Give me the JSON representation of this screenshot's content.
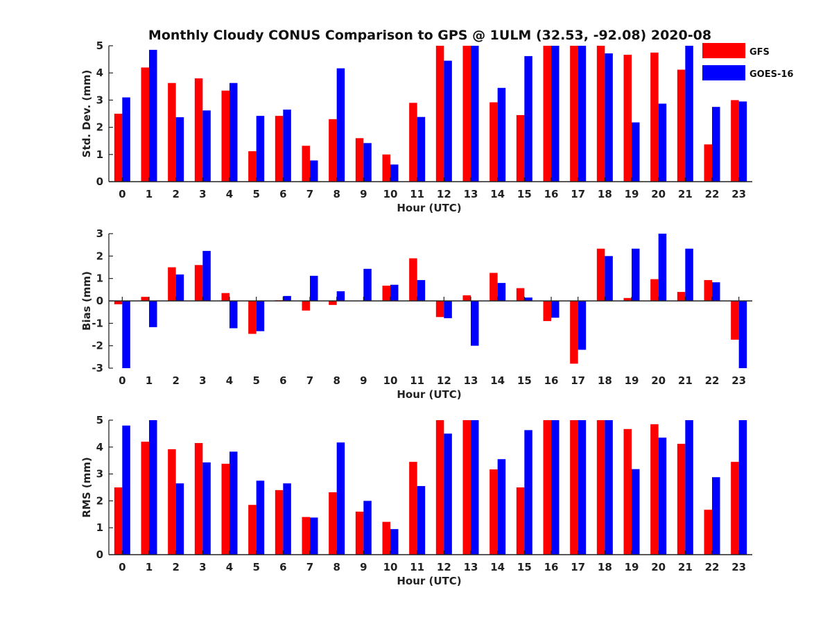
{
  "figure_title": "Monthly Cloudy CONUS Comparison to GPS @ 1ULM (32.53, -92.08) 2020-08",
  "legend": [
    {
      "name": "GFS",
      "color": "#ff0000"
    },
    {
      "name": "GOES-16",
      "color": "#0000ff"
    }
  ],
  "chart_data": [
    {
      "type": "bar",
      "title": "",
      "xlabel": "Hour (UTC)",
      "ylabel": "Std. Dev. (mm)",
      "ylim": [
        0,
        5
      ],
      "yticks": [
        0,
        1,
        2,
        3,
        4,
        5
      ],
      "categories": [
        "0",
        "1",
        "2",
        "3",
        "4",
        "5",
        "6",
        "7",
        "8",
        "9",
        "10",
        "11",
        "12",
        "13",
        "14",
        "15",
        "16",
        "17",
        "18",
        "19",
        "20",
        "21",
        "22",
        "23"
      ],
      "series": [
        {
          "name": "GFS",
          "color": "#ff0000",
          "values": [
            2.5,
            4.2,
            3.63,
            3.8,
            3.35,
            1.12,
            2.42,
            1.32,
            2.3,
            1.6,
            1.0,
            2.9,
            5.0,
            5.0,
            2.92,
            2.45,
            5.0,
            5.0,
            5.0,
            4.67,
            4.75,
            4.12,
            1.37,
            3.0
          ]
        },
        {
          "name": "GOES-16",
          "color": "#0000ff",
          "values": [
            3.1,
            4.85,
            2.37,
            2.62,
            3.63,
            2.42,
            2.65,
            0.78,
            4.17,
            1.42,
            0.63,
            2.38,
            4.45,
            5.0,
            3.45,
            4.62,
            5.0,
            5.0,
            4.72,
            2.18,
            2.87,
            5.0,
            2.75,
            2.95
          ]
        }
      ]
    },
    {
      "type": "bar",
      "title": "",
      "xlabel": "Hour (UTC)",
      "ylabel": "Bias (mm)",
      "ylim": [
        -3,
        3
      ],
      "yticks": [
        -3,
        -2,
        -1,
        0,
        1,
        2,
        3
      ],
      "categories": [
        "0",
        "1",
        "2",
        "3",
        "4",
        "5",
        "6",
        "7",
        "8",
        "9",
        "10",
        "11",
        "12",
        "13",
        "14",
        "15",
        "16",
        "17",
        "18",
        "19",
        "20",
        "21",
        "22",
        "23"
      ],
      "series": [
        {
          "name": "GFS",
          "color": "#ff0000",
          "values": [
            -0.15,
            0.18,
            1.5,
            1.6,
            0.35,
            -1.47,
            0.03,
            -0.43,
            -0.18,
            0.0,
            0.68,
            1.9,
            -0.72,
            0.25,
            1.25,
            0.57,
            -0.9,
            -2.8,
            2.33,
            0.13,
            0.97,
            0.4,
            0.93,
            -1.73
          ]
        },
        {
          "name": "GOES-16",
          "color": "#0000ff",
          "values": [
            -3.0,
            -1.17,
            1.18,
            2.23,
            -1.22,
            -1.35,
            0.22,
            1.12,
            0.43,
            1.43,
            0.72,
            0.93,
            -0.77,
            -2.0,
            0.8,
            0.15,
            -0.75,
            -2.18,
            2.0,
            2.33,
            3.0,
            2.33,
            0.83,
            -3.0
          ]
        }
      ]
    },
    {
      "type": "bar",
      "title": "",
      "xlabel": "Hour (UTC)",
      "ylabel": "RMS (mm)",
      "ylim": [
        0,
        5
      ],
      "yticks": [
        0,
        1,
        2,
        3,
        4,
        5
      ],
      "categories": [
        "0",
        "1",
        "2",
        "3",
        "4",
        "5",
        "6",
        "7",
        "8",
        "9",
        "10",
        "11",
        "12",
        "13",
        "14",
        "15",
        "16",
        "17",
        "18",
        "19",
        "20",
        "21",
        "22",
        "23"
      ],
      "series": [
        {
          "name": "GFS",
          "color": "#ff0000",
          "values": [
            2.5,
            4.2,
            3.92,
            4.15,
            3.38,
            1.85,
            2.4,
            1.4,
            2.32,
            1.6,
            1.22,
            3.45,
            5.0,
            5.0,
            3.17,
            2.5,
            5.0,
            5.0,
            5.0,
            4.67,
            4.85,
            4.12,
            1.67,
            3.45
          ]
        },
        {
          "name": "GOES-16",
          "color": "#0000ff",
          "values": [
            4.8,
            5.0,
            2.65,
            3.43,
            3.83,
            2.75,
            2.65,
            1.38,
            4.17,
            2.0,
            0.95,
            2.55,
            4.5,
            5.0,
            3.55,
            4.63,
            5.0,
            5.0,
            5.0,
            3.18,
            4.35,
            5.0,
            2.88,
            5.0
          ]
        }
      ]
    }
  ]
}
